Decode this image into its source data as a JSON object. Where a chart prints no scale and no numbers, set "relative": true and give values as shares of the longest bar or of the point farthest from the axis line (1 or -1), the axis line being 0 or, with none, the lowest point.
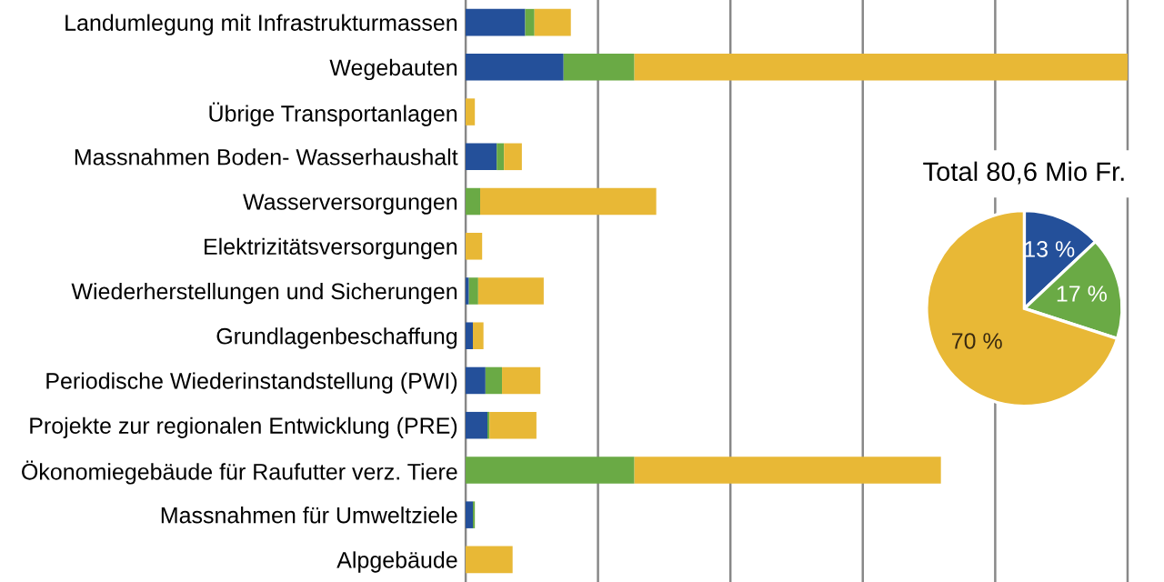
{
  "chart_data": [
    {
      "type": "bar",
      "orientation": "horizontal",
      "stacked": true,
      "relative": true,
      "grid": "x",
      "legend": false,
      "categories": [
        "Landumlegung mit Infrastrukturmassen",
        "Wegebauten",
        "Übrige Transportanlagen",
        "Massnahmen Boden- Wasserhaushalt",
        "Wasserversorgungen",
        "Elektrizitätsversorgungen",
        "Wiederherstellungen und Sicherungen",
        "Grundlagenbeschaffung",
        "Periodische Wiederinstandstellung (PWI)",
        "Projekte zur regionalen Entwicklung (PRE)",
        "Ökonomiegebäude für Raufutter verz. Tiere",
        "Massnahmen für Umweltziele",
        "Alpgebäude"
      ],
      "series": [
        {
          "color": "#24509a",
          "values": [
            0.09,
            0.148,
            0,
            0.047,
            0,
            0,
            0.005,
            0.011,
            0.03,
            0.033,
            0,
            0.011,
            0
          ]
        },
        {
          "color": "#6aaa45",
          "values": [
            0.014,
            0.107,
            0,
            0.011,
            0.022,
            0,
            0.014,
            0,
            0.025,
            0.003,
            0.255,
            0.003,
            0
          ]
        },
        {
          "color": "#e8b836",
          "values": [
            0.055,
            0.745,
            0.014,
            0.027,
            0.266,
            0.025,
            0.099,
            0.016,
            0.058,
            0.071,
            0.463,
            0,
            0.071
          ]
        }
      ]
    },
    {
      "type": "pie",
      "title": "Total 80,6 Mio Fr.",
      "categories": [
        null,
        null,
        null
      ],
      "values": [
        13,
        17,
        70
      ],
      "colors": [
        "#24509a",
        "#6aaa45",
        "#e8b836"
      ],
      "value_labels": [
        "13 %",
        "17 %",
        "70 %"
      ]
    }
  ]
}
